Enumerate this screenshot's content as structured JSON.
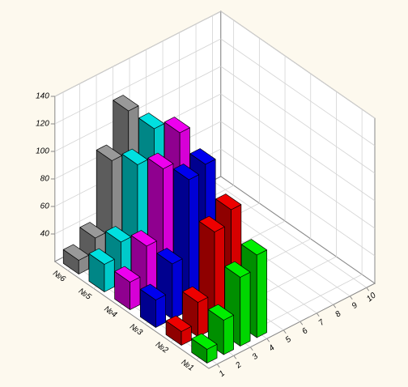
{
  "chart_data": {
    "type": "bar3d",
    "x": [
      1,
      2,
      3,
      4
    ],
    "xlim": [
      0.5,
      10.5
    ],
    "xticks": [
      1,
      2,
      3,
      4,
      5,
      6,
      7,
      8,
      9,
      10
    ],
    "ylim": [
      20,
      140
    ],
    "yticks": [
      40,
      60,
      80,
      100,
      120,
      140
    ],
    "grid": true,
    "series": [
      {
        "name": "№1",
        "color": "#00ee00",
        "values": [
          30,
          45,
          70,
          80
        ]
      },
      {
        "name": "№2",
        "color": "#ee0000",
        "values": [
          30,
          45,
          90,
          100
        ]
      },
      {
        "name": "№3",
        "color": "#0000ee",
        "values": [
          40,
          60,
          115,
          120
        ]
      },
      {
        "name": "№4",
        "color": "#ee00ee",
        "values": [
          40,
          60,
          110,
          130
        ]
      },
      {
        "name": "№5",
        "color": "#00e0e0",
        "values": [
          40,
          50,
          100,
          120
        ]
      },
      {
        "name": "№6",
        "color": "#999999",
        "values": [
          30,
          40,
          90,
          120
        ]
      }
    ]
  }
}
